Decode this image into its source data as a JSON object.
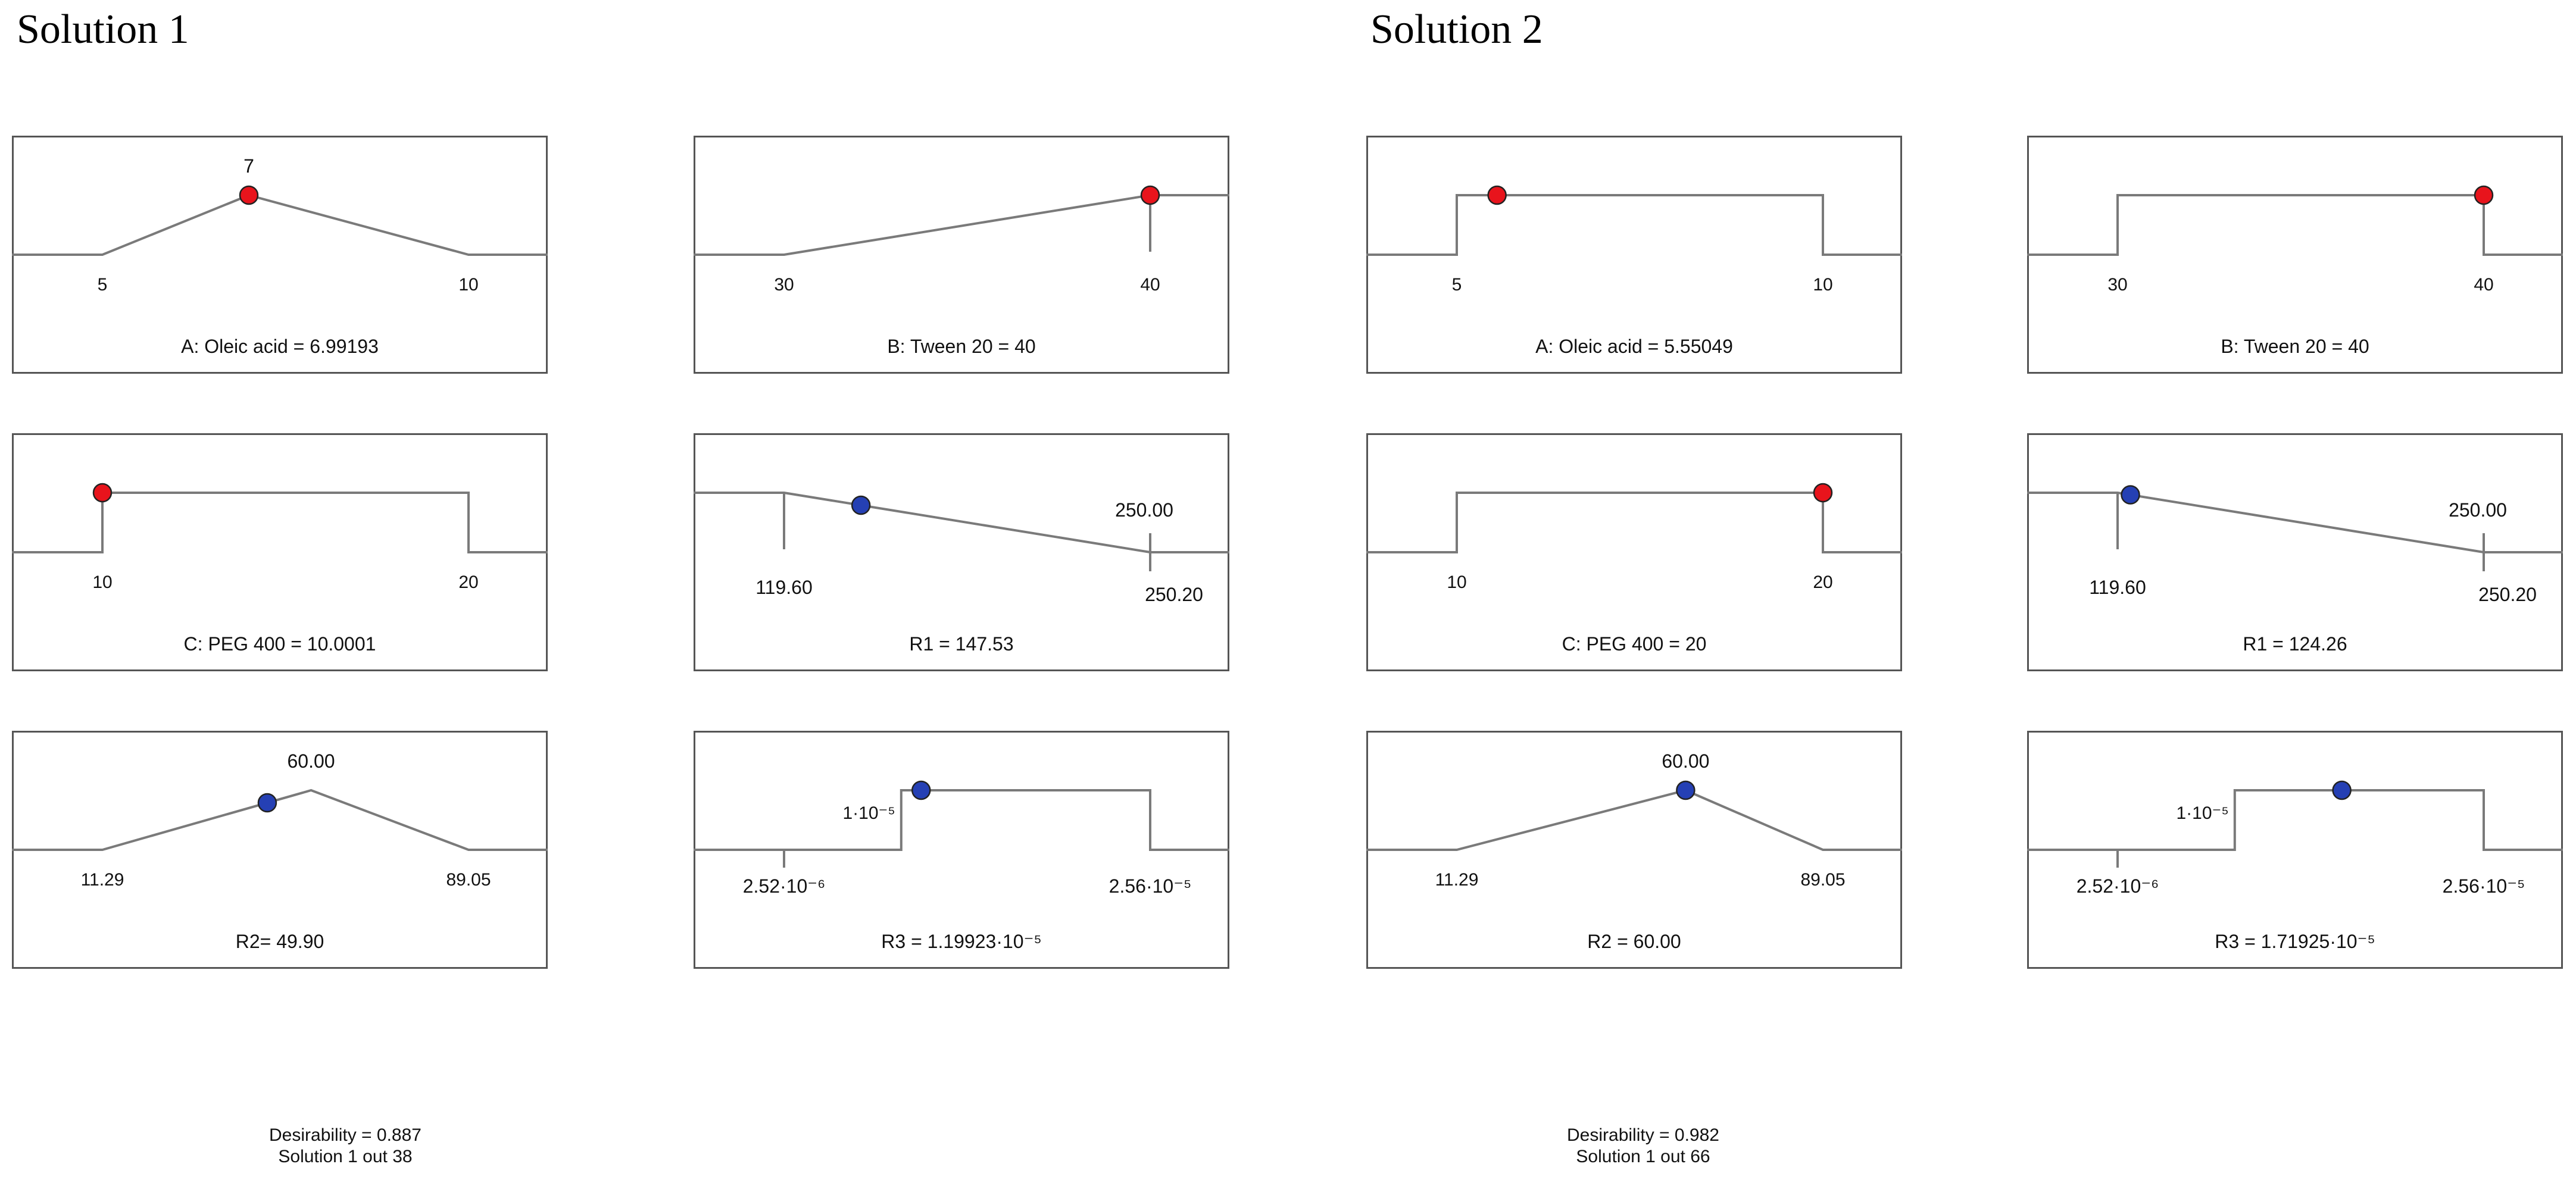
{
  "solutions": [
    {
      "title": "Solution 1",
      "desirability": "Desirability = 0.887",
      "solution_count": "Solution 1 out 38"
    },
    {
      "title": "Solution 2",
      "desirability": "Desirability = 0.982",
      "solution_count": "Solution 1 out 66"
    }
  ],
  "chart_data": [
    {
      "id": "s1-a",
      "type": "line",
      "title": "A: Oleic acid = 6.99193",
      "profile": "peak",
      "low": "5",
      "high": "10",
      "target": "7",
      "point": "6.99193",
      "point_color": "#e8141c",
      "point_position": 0.4,
      "point_height": "high"
    },
    {
      "id": "s1-b",
      "type": "line",
      "title": "B: Tween 20 = 40",
      "profile": "ramp-up",
      "low": "30",
      "high": "40",
      "point": "40",
      "point_color": "#e8141c",
      "point_position": 1.0
    },
    {
      "id": "s1-c",
      "type": "line",
      "title": "C: PEG 400 = 10.0001",
      "profile": "plateau",
      "low": "10",
      "high": "20",
      "point": "10.0001",
      "point_color": "#e8141c",
      "point_position": 0.0
    },
    {
      "id": "s1-r1",
      "type": "line",
      "title": "R1 = 147.53",
      "profile": "ramp-down",
      "low": "119.60",
      "high": "250.20",
      "target": "250.00",
      "point": "147.53",
      "point_color": "#2540b4",
      "point_position": 0.21
    },
    {
      "id": "s1-r2",
      "type": "line",
      "title": "R2= 49.90",
      "profile": "peak",
      "low": "11.29",
      "high": "89.05",
      "target": "60.00",
      "point": "49.90",
      "point_color": "#2540b4",
      "point_position": 0.5,
      "point_height": "below-peak"
    },
    {
      "id": "s1-r3",
      "type": "line",
      "title": "R3 = 1.19923·10⁻⁵",
      "profile": "plateau",
      "low": "2.52·10⁻⁶",
      "high": "2.56·10⁻⁵",
      "target": "1·10⁻⁵",
      "point": "1.19923·10⁻⁵",
      "point_color": "#2540b4",
      "point_position": 0.08,
      "plateau_start": 0.32
    },
    {
      "id": "s2-a",
      "type": "line",
      "title": "A: Oleic acid = 5.55049",
      "profile": "plateau",
      "low": "5",
      "high": "10",
      "point": "5.55049",
      "point_color": "#e8141c",
      "point_position": 0.11
    },
    {
      "id": "s2-b",
      "type": "line",
      "title": "B: Tween 20 = 40",
      "profile": "plateau",
      "low": "30",
      "high": "40",
      "point": "40",
      "point_color": "#e8141c",
      "point_position": 1.0
    },
    {
      "id": "s2-c",
      "type": "line",
      "title": "C: PEG 400 = 20",
      "profile": "plateau",
      "low": "10",
      "high": "20",
      "point": "20",
      "point_color": "#e8141c",
      "point_position": 1.0
    },
    {
      "id": "s2-r1",
      "type": "line",
      "title": "R1 = 124.26",
      "profile": "ramp-down",
      "low": "119.60",
      "high": "250.20",
      "target": "250.00",
      "point": "124.26",
      "point_color": "#2540b4",
      "point_position": 0.035
    },
    {
      "id": "s2-r2",
      "type": "line",
      "title": "R2 = 60.00",
      "profile": "peak",
      "low": "11.29",
      "high": "89.05",
      "target": "60.00",
      "point": "60.00",
      "point_color": "#2540b4",
      "point_position": 0.625,
      "point_height": "high"
    },
    {
      "id": "s2-r3",
      "type": "line",
      "title": "R3 = 1.71925·10⁻⁵",
      "profile": "plateau",
      "low": "2.52·10⁻⁶",
      "high": "2.56·10⁻⁵",
      "target": "1·10⁻⁵",
      "point": "1.71925·10⁻⁵",
      "point_color": "#2540b4",
      "point_position": 0.43,
      "plateau_start": 0.32
    }
  ]
}
